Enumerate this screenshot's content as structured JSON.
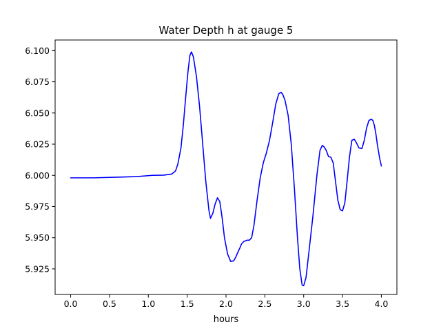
{
  "chart_data": {
    "type": "line",
    "title": "Water Depth h at gauge 5",
    "xlabel": "hours",
    "ylabel": "",
    "xlim": [
      -0.2,
      4.2
    ],
    "ylim": [
      5.9045,
      6.1085
    ],
    "xticks": [
      0.0,
      0.5,
      1.0,
      1.5,
      2.0,
      2.5,
      3.0,
      3.5,
      4.0
    ],
    "xtick_labels": [
      "0.0",
      "0.5",
      "1.0",
      "1.5",
      "2.0",
      "2.5",
      "3.0",
      "3.5",
      "4.0"
    ],
    "yticks": [
      5.925,
      5.95,
      5.975,
      6.0,
      6.025,
      6.05,
      6.075,
      6.1
    ],
    "ytick_labels": [
      "5.925",
      "5.950",
      "5.975",
      "6.000",
      "6.025",
      "6.050",
      "6.075",
      "6.100"
    ],
    "grid": false,
    "series": [
      {
        "color": "#0000ff",
        "x": [
          0.0,
          0.3,
          0.6,
          0.85,
          0.95,
          1.05,
          1.2,
          1.3,
          1.35,
          1.38,
          1.42,
          1.45,
          1.48,
          1.51,
          1.535,
          1.555,
          1.58,
          1.62,
          1.66,
          1.7,
          1.74,
          1.78,
          1.8,
          1.83,
          1.86,
          1.89,
          1.92,
          1.95,
          1.98,
          2.02,
          2.06,
          2.1,
          2.13,
          2.15,
          2.18,
          2.2,
          2.23,
          2.27,
          2.3,
          2.33,
          2.36,
          2.4,
          2.44,
          2.48,
          2.52,
          2.56,
          2.6,
          2.64,
          2.68,
          2.71,
          2.73,
          2.76,
          2.8,
          2.84,
          2.88,
          2.92,
          2.95,
          2.98,
          3.0,
          3.03,
          3.07,
          3.12,
          3.17,
          3.21,
          3.24,
          3.26,
          3.29,
          3.32,
          3.35,
          3.38,
          3.41,
          3.44,
          3.47,
          3.5,
          3.53,
          3.56,
          3.59,
          3.62,
          3.65,
          3.68,
          3.71,
          3.75,
          3.78,
          3.81,
          3.84,
          3.87,
          3.89,
          3.91,
          3.93,
          3.95,
          3.98,
          4.0
        ],
        "y": [
          5.998,
          5.998,
          5.9985,
          5.999,
          5.9995,
          6.0,
          6.0002,
          6.001,
          6.0035,
          6.009,
          6.022,
          6.04,
          6.062,
          6.083,
          6.096,
          6.099,
          6.095,
          6.079,
          6.055,
          6.025,
          5.995,
          5.972,
          5.9655,
          5.9695,
          5.977,
          5.982,
          5.979,
          5.966,
          5.95,
          5.937,
          5.931,
          5.9315,
          5.935,
          5.938,
          5.942,
          5.945,
          5.947,
          5.948,
          5.948,
          5.95,
          5.96,
          5.98,
          5.998,
          6.01,
          6.018,
          6.028,
          6.042,
          6.057,
          6.0655,
          6.0665,
          6.065,
          6.06,
          6.048,
          6.025,
          5.99,
          5.95,
          5.925,
          5.912,
          5.9115,
          5.918,
          5.94,
          5.968,
          6.0,
          6.02,
          6.024,
          6.023,
          6.02,
          6.015,
          6.0145,
          6.01,
          5.995,
          5.98,
          5.9725,
          5.9715,
          5.978,
          5.996,
          6.015,
          6.028,
          6.029,
          6.026,
          6.022,
          6.0215,
          6.028,
          6.038,
          6.044,
          6.045,
          6.044,
          6.04,
          6.033,
          6.024,
          6.013,
          6.0075
        ]
      }
    ]
  }
}
